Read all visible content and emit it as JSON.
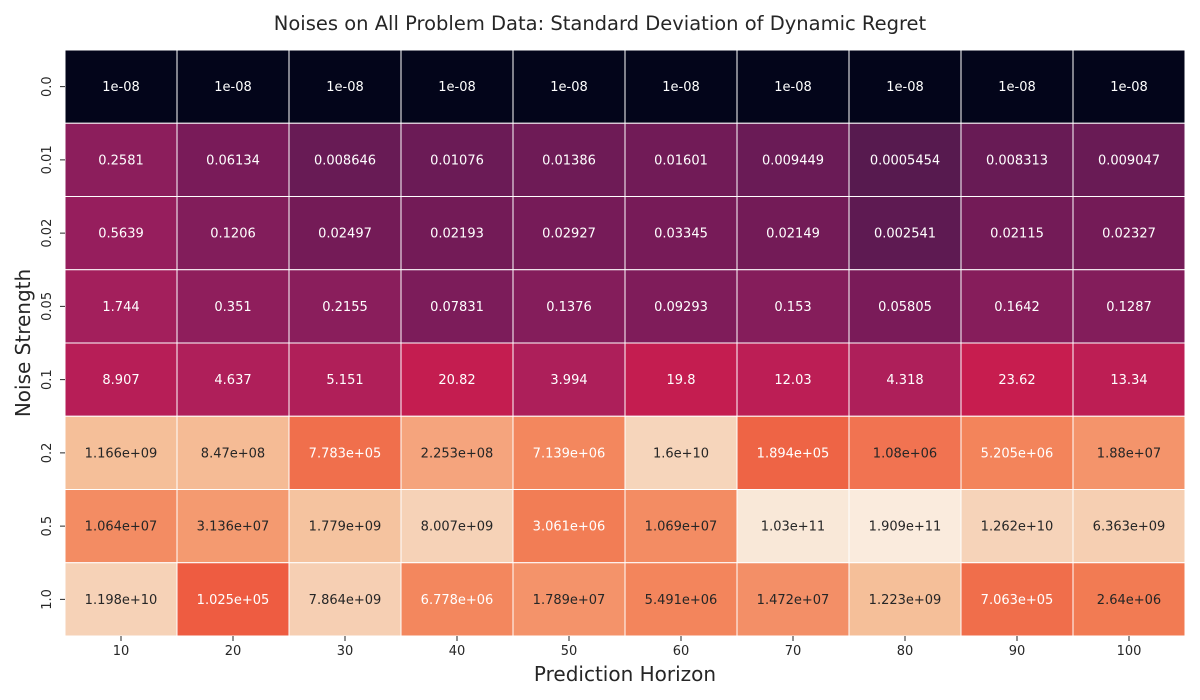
{
  "chart_data": {
    "type": "heatmap",
    "title": "Noises on All Problem Data: Standard Deviation of Dynamic Regret",
    "xlabel": "Prediction Horizon",
    "ylabel": "Noise Strength",
    "x_categories": [
      "10",
      "20",
      "30",
      "40",
      "50",
      "60",
      "70",
      "80",
      "90",
      "100"
    ],
    "y_categories": [
      "0.0",
      "0.01",
      "0.02",
      "0.05",
      "0.1",
      "0.2",
      "0.5",
      "1.0"
    ],
    "grid": true,
    "legend": "none",
    "cells": [
      [
        {
          "label": "1e-08",
          "fill": "#03051a",
          "text_color": "#ffffff"
        },
        {
          "label": "1e-08",
          "fill": "#03051a",
          "text_color": "#ffffff"
        },
        {
          "label": "1e-08",
          "fill": "#03051a",
          "text_color": "#ffffff"
        },
        {
          "label": "1e-08",
          "fill": "#03051a",
          "text_color": "#ffffff"
        },
        {
          "label": "1e-08",
          "fill": "#03051a",
          "text_color": "#ffffff"
        },
        {
          "label": "1e-08",
          "fill": "#03051a",
          "text_color": "#ffffff"
        },
        {
          "label": "1e-08",
          "fill": "#03051a",
          "text_color": "#ffffff"
        },
        {
          "label": "1e-08",
          "fill": "#03051a",
          "text_color": "#ffffff"
        },
        {
          "label": "1e-08",
          "fill": "#03051a",
          "text_color": "#ffffff"
        },
        {
          "label": "1e-08",
          "fill": "#03051a",
          "text_color": "#ffffff"
        }
      ],
      [
        {
          "label": "0.2581",
          "fill": "#8c1e5c",
          "text_color": "#ffffff"
        },
        {
          "label": "0.06134",
          "fill": "#791b59",
          "text_color": "#ffffff"
        },
        {
          "label": "0.008646",
          "fill": "#681b55",
          "text_color": "#ffffff"
        },
        {
          "label": "0.01076",
          "fill": "#6b1b56",
          "text_color": "#ffffff"
        },
        {
          "label": "0.01386",
          "fill": "#6e1b56",
          "text_color": "#ffffff"
        },
        {
          "label": "0.01601",
          "fill": "#711b57",
          "text_color": "#ffffff"
        },
        {
          "label": "0.009449",
          "fill": "#6a1b56",
          "text_color": "#ffffff"
        },
        {
          "label": "0.0005454",
          "fill": "#571a4f",
          "text_color": "#ffffff"
        },
        {
          "label": "0.008313",
          "fill": "#681b55",
          "text_color": "#ffffff"
        },
        {
          "label": "0.009047",
          "fill": "#691b55",
          "text_color": "#ffffff"
        }
      ],
      [
        {
          "label": "0.5639",
          "fill": "#961e5d",
          "text_color": "#ffffff"
        },
        {
          "label": "0.1206",
          "fill": "#821d5b",
          "text_color": "#ffffff"
        },
        {
          "label": "0.02497",
          "fill": "#741b57",
          "text_color": "#ffffff"
        },
        {
          "label": "0.02193",
          "fill": "#731b57",
          "text_color": "#ffffff"
        },
        {
          "label": "0.02927",
          "fill": "#761b58",
          "text_color": "#ffffff"
        },
        {
          "label": "0.03345",
          "fill": "#771b58",
          "text_color": "#ffffff"
        },
        {
          "label": "0.02149",
          "fill": "#731b57",
          "text_color": "#ffffff"
        },
        {
          "label": "0.002541",
          "fill": "#5e1a52",
          "text_color": "#ffffff"
        },
        {
          "label": "0.02115",
          "fill": "#731b57",
          "text_color": "#ffffff"
        },
        {
          "label": "0.02327",
          "fill": "#741b57",
          "text_color": "#ffffff"
        }
      ],
      [
        {
          "label": "1.744",
          "fill": "#a31f5c",
          "text_color": "#ffffff"
        },
        {
          "label": "0.351",
          "fill": "#8f1e5c",
          "text_color": "#ffffff"
        },
        {
          "label": "0.2155",
          "fill": "#8a1e5c",
          "text_color": "#ffffff"
        },
        {
          "label": "0.07831",
          "fill": "#7c1c5a",
          "text_color": "#ffffff"
        },
        {
          "label": "0.1376",
          "fill": "#841d5b",
          "text_color": "#ffffff"
        },
        {
          "label": "0.09293",
          "fill": "#7f1c5a",
          "text_color": "#ffffff"
        },
        {
          "label": "0.153",
          "fill": "#851d5b",
          "text_color": "#ffffff"
        },
        {
          "label": "0.05805",
          "fill": "#7a1b59",
          "text_color": "#ffffff"
        },
        {
          "label": "0.1642",
          "fill": "#861d5b",
          "text_color": "#ffffff"
        },
        {
          "label": "0.1287",
          "fill": "#831d5b",
          "text_color": "#ffffff"
        }
      ],
      [
        {
          "label": "8.907",
          "fill": "#b71e57",
          "text_color": "#ffffff"
        },
        {
          "label": "4.637",
          "fill": "#af1f5a",
          "text_color": "#ffffff"
        },
        {
          "label": "5.151",
          "fill": "#b01f59",
          "text_color": "#ffffff"
        },
        {
          "label": "20.82",
          "fill": "#c41d50",
          "text_color": "#ffffff"
        },
        {
          "label": "3.994",
          "fill": "#ad1f5a",
          "text_color": "#ffffff"
        },
        {
          "label": "19.8",
          "fill": "#c41d50",
          "text_color": "#ffffff"
        },
        {
          "label": "12.03",
          "fill": "#bc1e55",
          "text_color": "#ffffff"
        },
        {
          "label": "4.318",
          "fill": "#ae1f5a",
          "text_color": "#ffffff"
        },
        {
          "label": "23.62",
          "fill": "#c71d4f",
          "text_color": "#ffffff"
        },
        {
          "label": "13.34",
          "fill": "#bd1e54",
          "text_color": "#ffffff"
        }
      ],
      [
        {
          "label": "1.166e+09",
          "fill": "#f5bf99",
          "text_color": "#262626"
        },
        {
          "label": "8.47e+08",
          "fill": "#f5bb95",
          "text_color": "#262626"
        },
        {
          "label": "7.783e+05",
          "fill": "#f06f4c",
          "text_color": "#ffffff"
        },
        {
          "label": "2.253e+08",
          "fill": "#f5a47d",
          "text_color": "#262626"
        },
        {
          "label": "7.139e+06",
          "fill": "#f3875e",
          "text_color": "#ffffff"
        },
        {
          "label": "1.6e+10",
          "fill": "#f6d5bb",
          "text_color": "#262626"
        },
        {
          "label": "1.894e+05",
          "fill": "#ee6445",
          "text_color": "#ffffff"
        },
        {
          "label": "1.08e+06",
          "fill": "#f17351",
          "text_color": "#262626"
        },
        {
          "label": "5.205e+06",
          "fill": "#f3845b",
          "text_color": "#ffffff"
        },
        {
          "label": "1.88e+07",
          "fill": "#f4946b",
          "text_color": "#262626"
        }
      ],
      [
        {
          "label": "1.064e+07",
          "fill": "#f38c63",
          "text_color": "#262626"
        },
        {
          "label": "3.136e+07",
          "fill": "#f49a70",
          "text_color": "#262626"
        },
        {
          "label": "1.779e+09",
          "fill": "#f5c39f",
          "text_color": "#262626"
        },
        {
          "label": "8.007e+09",
          "fill": "#f6d2b7",
          "text_color": "#262626"
        },
        {
          "label": "3.061e+06",
          "fill": "#f27d55",
          "text_color": "#ffffff"
        },
        {
          "label": "1.069e+07",
          "fill": "#f38c63",
          "text_color": "#262626"
        },
        {
          "label": "1.03e+11",
          "fill": "#f9e8d8",
          "text_color": "#262626"
        },
        {
          "label": "1.909e+11",
          "fill": "#faebdd",
          "text_color": "#262626"
        },
        {
          "label": "1.262e+10",
          "fill": "#f6d3b9",
          "text_color": "#262626"
        },
        {
          "label": "6.363e+09",
          "fill": "#f6cfb2",
          "text_color": "#262626"
        }
      ],
      [
        {
          "label": "1.198e+10",
          "fill": "#f6d2b7",
          "text_color": "#262626"
        },
        {
          "label": "1.025e+05",
          "fill": "#ee5c41",
          "text_color": "#ffffff"
        },
        {
          "label": "7.864e+09",
          "fill": "#f6cfb3",
          "text_color": "#262626"
        },
        {
          "label": "6.778e+06",
          "fill": "#f3875e",
          "text_color": "#ffffff"
        },
        {
          "label": "1.789e+07",
          "fill": "#f4936a",
          "text_color": "#262626"
        },
        {
          "label": "5.491e+06",
          "fill": "#f3855c",
          "text_color": "#262626"
        },
        {
          "label": "1.472e+07",
          "fill": "#f38f67",
          "text_color": "#262626"
        },
        {
          "label": "1.223e+09",
          "fill": "#f5bf99",
          "text_color": "#262626"
        },
        {
          "label": "7.063e+05",
          "fill": "#f06e4b",
          "text_color": "#ffffff"
        },
        {
          "label": "2.64e+06",
          "fill": "#f27b53",
          "text_color": "#262626"
        }
      ]
    ]
  }
}
